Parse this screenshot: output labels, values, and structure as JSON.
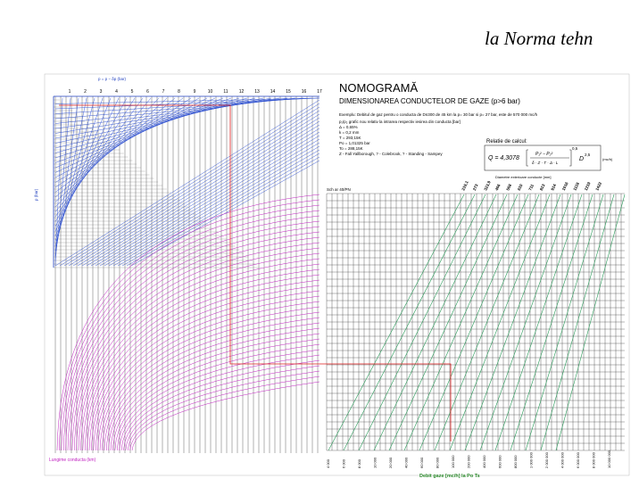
{
  "header": {
    "text": "la Norma tehn"
  },
  "nomogram": {
    "title": "NOMOGRAMĂ",
    "subtitle": "DIMENSIONAREA CONDUCTELOR DE GAZE (p>6 bar)",
    "example": "Exemplu: Debitul de gaz pentru o conducta de Dn300 de 45 km la p= 30 bar si p= 27 bar, este de 570 000 mc/h",
    "params": [
      "p₁/p₂ grafic nou relativ la intrarea respectiv iesirea din conducta [bar]",
      "Δ = 0,65%",
      "k = 0,2 mm",
      "T = 293,15K",
      "Po = 1,01325 bar",
      "To = 288,15K",
      "Z - Fall Yallborough, ? - Colebrook, ? - Standing - Sampey"
    ],
    "relation_title": "Relatie de calcul:",
    "formula_left": "Q = 4,3078",
    "formula_num": "P₁² − P₂²",
    "formula_den": "δ · Z · T · Δ · L",
    "formula_exp": "0,5",
    "formula_d": "D",
    "formula_d_exp": "2,5",
    "formula_unit": "(mc/h)",
    "top_axis_label": "p = p − δp (bar)",
    "top_ticks": [
      "1",
      "2",
      "3",
      "4",
      "5",
      "6",
      "7",
      "8",
      "9",
      "10",
      "11",
      "12",
      "13",
      "14",
      "15",
      "16",
      "17"
    ],
    "left_axis_label": "p (bar)",
    "length_label": "Lungime conducta (km)",
    "pipe_label": "Sch ar 40/PN",
    "diameter_title": "Diametre exterioare conducte [mm]",
    "diameters": [
      "219,1",
      "273",
      "323,9",
      "406",
      "508",
      "610",
      "711",
      "813",
      "914",
      "1016",
      "1118",
      "1219",
      "1422"
    ],
    "flow_label": "Debit gaze [mc/h] la Po Ts",
    "flow_ticks": [
      "4 000",
      "6 000",
      "8 000",
      "10 000",
      "20 000",
      "40 000",
      "60 000",
      "80 000",
      "100 000",
      "200 000",
      "400 000",
      "600 000",
      "800 000",
      "1 000 000",
      "2 000 000",
      "4 000 000",
      "6 000 000",
      "8 000 000",
      "10 000 000"
    ]
  }
}
